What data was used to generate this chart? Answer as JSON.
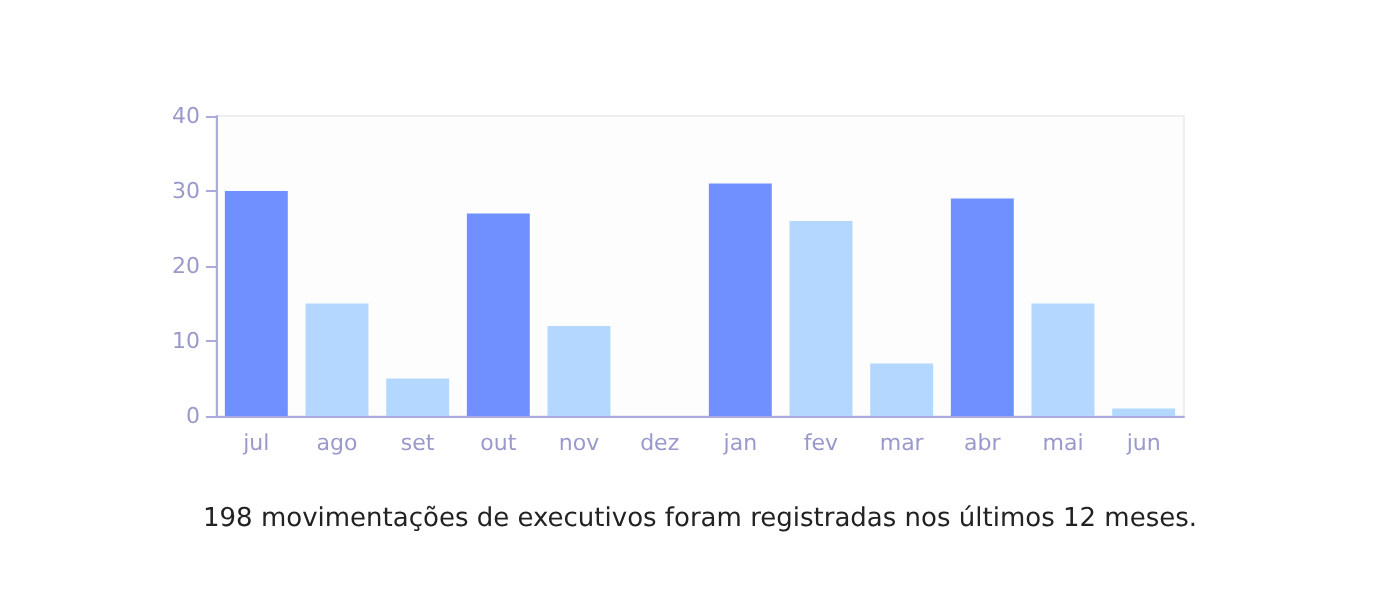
{
  "chart_data": {
    "type": "bar",
    "categories": [
      "jul",
      "ago",
      "set",
      "out",
      "nov",
      "dez",
      "jan",
      "fev",
      "mar",
      "abr",
      "mai",
      "jun"
    ],
    "values": [
      30,
      15,
      5,
      27,
      12,
      0,
      31,
      26,
      7,
      29,
      15,
      1
    ],
    "colors": [
      "#7090ff",
      "#b3d7ff",
      "#b3d7ff",
      "#7090ff",
      "#b3d7ff",
      "#b3d7ff",
      "#7090ff",
      "#b3d7ff",
      "#b3d7ff",
      "#7090ff",
      "#b3d7ff",
      "#b3d7ff"
    ],
    "ylim": [
      0,
      40
    ],
    "yticks": [
      0,
      10,
      20,
      30,
      40
    ],
    "grid": false,
    "annotations": [
      "198 movimentações de executivos foram registradas nos últimos 12 meses."
    ]
  }
}
